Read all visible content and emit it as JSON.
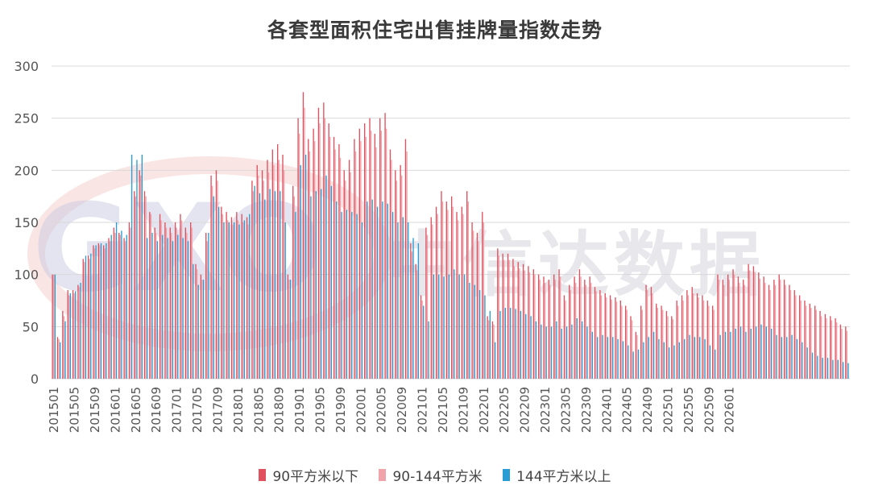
{
  "watermark": {
    "text": "中信达数据",
    "logo_text": "GXO"
  },
  "colors": {
    "s1": "#e0505e",
    "s2": "#f0a3ab",
    "s3": "#2a9ed4",
    "grid": "#d9d9d9",
    "axis_text": "#555555"
  },
  "chart_data": {
    "type": "bar",
    "title": "各套型面积住宅出售挂牌量指数走势",
    "xlabel": "",
    "ylabel": "",
    "ylim": [
      0,
      300
    ],
    "yticks": [
      0,
      50,
      100,
      150,
      200,
      250,
      300
    ],
    "grid": true,
    "legend_position": "bottom",
    "x_start": "201501",
    "x_end": "202602",
    "tick_labels": [
      "201501",
      "201505",
      "201509",
      "201601",
      "201605",
      "201609",
      "201701",
      "201705",
      "201709",
      "201801",
      "201805",
      "201809",
      "201901",
      "201905",
      "201909",
      "202001",
      "202005",
      "202009",
      "202101",
      "202105",
      "202109",
      "202201",
      "202205",
      "202209",
      "202301",
      "202305",
      "202309",
      "202401",
      "202405",
      "202409",
      "202501",
      "202505",
      "202509",
      "202601"
    ],
    "series": [
      {
        "name": "90平方米以下",
        "values": [
          100,
          40,
          65,
          85,
          85,
          90,
          115,
          118,
          128,
          130,
          128,
          135,
          145,
          140,
          135,
          150,
          180,
          200,
          180,
          160,
          145,
          158,
          150,
          145,
          150,
          158,
          145,
          150,
          110,
          100,
          140,
          195,
          200,
          165,
          160,
          155,
          160,
          158,
          155,
          190,
          205,
          200,
          210,
          220,
          225,
          215,
          100,
          185,
          250,
          275,
          230,
          240,
          260,
          265,
          245,
          232,
          225,
          200,
          210,
          230,
          240,
          245,
          250,
          235,
          250,
          255,
          220,
          200,
          205,
          230,
          130,
          110,
          80,
          145,
          155,
          165,
          180,
          170,
          175,
          160,
          165,
          180,
          150,
          140,
          160,
          60,
          55,
          125,
          120,
          120,
          115,
          112,
          110,
          108,
          105,
          100,
          98,
          95,
          100,
          105,
          80,
          90,
          98,
          105,
          95,
          98,
          88,
          85,
          82,
          80,
          78,
          75,
          70,
          60,
          45,
          70,
          90,
          88,
          72,
          70,
          65,
          60,
          75,
          80,
          85,
          88,
          82,
          80,
          75,
          70,
          100,
          95,
          100,
          105,
          98,
          95,
          110,
          108,
          102,
          98,
          90,
          95,
          100,
          95,
          90,
          85,
          80,
          75,
          72,
          70,
          65,
          62,
          60,
          58,
          52,
          50
        ]
      },
      {
        "name": "90-144平方米",
        "values": [
          100,
          38,
          60,
          80,
          82,
          88,
          112,
          115,
          125,
          128,
          125,
          132,
          140,
          138,
          132,
          145,
          175,
          195,
          175,
          158,
          140,
          152,
          145,
          140,
          145,
          152,
          140,
          145,
          105,
          95,
          132,
          185,
          190,
          158,
          152,
          148,
          152,
          150,
          148,
          180,
          195,
          190,
          198,
          205,
          210,
          200,
          95,
          175,
          235,
          260,
          218,
          228,
          245,
          250,
          232,
          220,
          212,
          190,
          198,
          218,
          228,
          232,
          238,
          222,
          238,
          240,
          210,
          190,
          195,
          218,
          122,
          104,
          75,
          138,
          148,
          158,
          170,
          162,
          165,
          152,
          158,
          170,
          142,
          132,
          150,
          56,
          52,
          118,
          114,
          114,
          108,
          106,
          104,
          102,
          100,
          95,
          92,
          90,
          95,
          98,
          75,
          85,
          92,
          98,
          90,
          92,
          84,
          80,
          78,
          76,
          74,
          70,
          66,
          56,
          42,
          66,
          85,
          82,
          68,
          66,
          60,
          57,
          70,
          75,
          80,
          82,
          78,
          75,
          70,
          66,
          95,
          90,
          95,
          100,
          92,
          90,
          104,
          102,
          96,
          92,
          85,
          90,
          95,
          90,
          85,
          80,
          75,
          70,
          68,
          66,
          60,
          58,
          56,
          54,
          48,
          46
        ]
      },
      {
        "name": "144平方米以上",
        "values": [
          100,
          35,
          55,
          82,
          84,
          92,
          118,
          120,
          128,
          130,
          130,
          138,
          150,
          142,
          138,
          215,
          210,
          215,
          135,
          140,
          132,
          138,
          135,
          132,
          138,
          135,
          132,
          110,
          90,
          95,
          140,
          175,
          165,
          150,
          150,
          150,
          148,
          152,
          158,
          185,
          178,
          172,
          182,
          180,
          180,
          150,
          95,
          160,
          205,
          215,
          175,
          180,
          182,
          195,
          185,
          170,
          160,
          162,
          160,
          158,
          150,
          170,
          172,
          165,
          170,
          168,
          160,
          150,
          155,
          150,
          135,
          130,
          70,
          55,
          100,
          100,
          98,
          100,
          105,
          100,
          100,
          92,
          90,
          85,
          80,
          65,
          35,
          65,
          68,
          68,
          67,
          65,
          62,
          60,
          55,
          52,
          50,
          50,
          55,
          48,
          50,
          52,
          58,
          55,
          50,
          45,
          40,
          42,
          40,
          40,
          38,
          36,
          32,
          26,
          28,
          35,
          40,
          45,
          38,
          35,
          30,
          32,
          35,
          38,
          42,
          40,
          40,
          38,
          32,
          28,
          42,
          45,
          45,
          48,
          50,
          45,
          48,
          50,
          52,
          50,
          48,
          42,
          40,
          40,
          42,
          38,
          35,
          30,
          25,
          22,
          20,
          20,
          18,
          18,
          16,
          15
        ]
      }
    ]
  }
}
